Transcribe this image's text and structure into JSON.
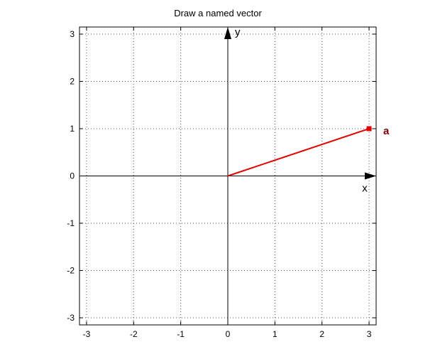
{
  "chart_data": {
    "type": "line",
    "title": "Draw a named vector",
    "xlabel": "",
    "ylabel": "",
    "xlim": [
      -3.15,
      3.15
    ],
    "ylim": [
      -3.15,
      3.15
    ],
    "xticks": [
      -3,
      -2,
      -1,
      0,
      1,
      2,
      3
    ],
    "yticks": [
      -3,
      -2,
      -1,
      0,
      1,
      2,
      3
    ],
    "grid": true,
    "axis_arrows": {
      "x_label": "x",
      "y_label": "y"
    },
    "vectors": [
      {
        "name": "a",
        "from": [
          0,
          0
        ],
        "to": [
          3,
          1
        ],
        "color": "#e00000",
        "label_color": "#800000"
      }
    ]
  }
}
